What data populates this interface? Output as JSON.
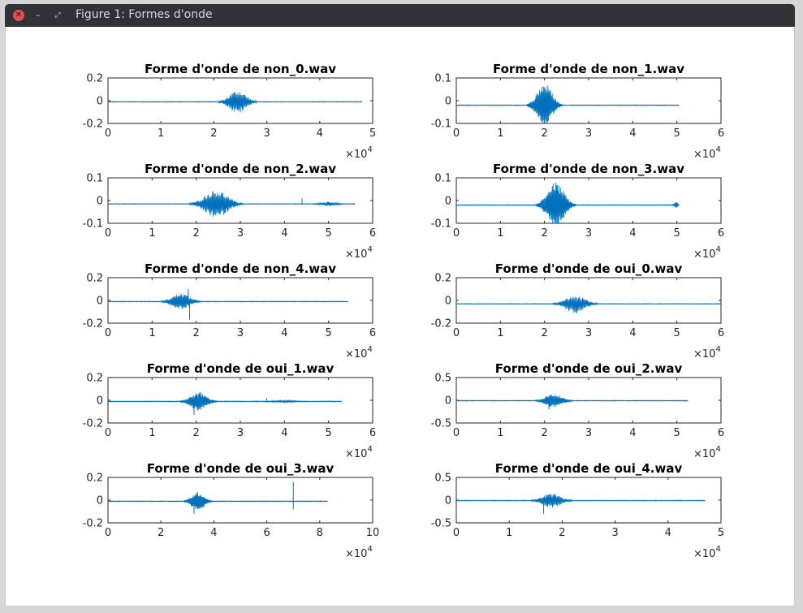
{
  "window": {
    "title": "Figure 1: Formes d'onde",
    "close_icon": "close-icon",
    "minimize_icon": "minimize-icon",
    "maximize_icon": "maximize-icon"
  },
  "colors": {
    "line": "#0072bd",
    "axes": "#262626",
    "titlebar": "#2f3338"
  },
  "chart_data": [
    {
      "type": "line",
      "title": "Forme d'onde de non_0.wav",
      "xlim": [
        0,
        5
      ],
      "ylim": [
        -0.2,
        0.2
      ],
      "xticks": [
        "0",
        "1",
        "2",
        "3",
        "4",
        "5"
      ],
      "yticks": [
        "-0.2",
        "0",
        "0.2"
      ],
      "x_exponent": "×10",
      "x_exponent_power": "4",
      "samples_x1e4": 4.8,
      "offset": -0.01,
      "bursts": [
        {
          "center": 2.45,
          "width": 0.6,
          "amplitude": 0.1
        }
      ],
      "spikes": []
    },
    {
      "type": "line",
      "title": "Forme d'onde de non_1.wav",
      "xlim": [
        0,
        6
      ],
      "ylim": [
        -0.1,
        0.1
      ],
      "xticks": [
        "0",
        "1",
        "2",
        "3",
        "4",
        "5",
        "6"
      ],
      "yticks": [
        "-0.1",
        "0",
        "0.1"
      ],
      "x_exponent": "×10",
      "x_exponent_power": "4",
      "samples_x1e4": 5.05,
      "offset": -0.02,
      "bursts": [
        {
          "center": 2.0,
          "width": 0.65,
          "amplitude": 0.1
        }
      ],
      "spikes": []
    },
    {
      "type": "line",
      "title": "Forme d'onde de non_2.wav",
      "xlim": [
        0,
        6
      ],
      "ylim": [
        -0.1,
        0.1
      ],
      "xticks": [
        "0",
        "1",
        "2",
        "3",
        "4",
        "5",
        "6"
      ],
      "yticks": [
        "-0.1",
        "0",
        "0.1"
      ],
      "x_exponent": "×10",
      "x_exponent_power": "4",
      "samples_x1e4": 5.6,
      "offset": -0.015,
      "bursts": [
        {
          "center": 2.45,
          "width": 1.0,
          "amplitude": 0.06
        },
        {
          "center": 5.0,
          "width": 0.6,
          "amplitude": 0.008
        }
      ],
      "spikes": [
        {
          "x": 4.4,
          "value": 0.01
        }
      ]
    },
    {
      "type": "line",
      "title": "Forme d'onde de non_3.wav",
      "xlim": [
        0,
        6
      ],
      "ylim": [
        -0.1,
        0.1
      ],
      "xticks": [
        "0",
        "1",
        "2",
        "3",
        "4",
        "5",
        "6"
      ],
      "yticks": [
        "-0.1",
        "0",
        "0.1"
      ],
      "x_exponent": "×10",
      "x_exponent_power": "4",
      "samples_x1e4": 5.05,
      "offset": -0.02,
      "bursts": [
        {
          "center": 2.25,
          "width": 0.75,
          "amplitude": 0.1
        },
        {
          "center": 4.98,
          "width": 0.12,
          "amplitude": 0.015
        }
      ],
      "spikes": [
        {
          "x": 4.9,
          "value": -0.015
        }
      ]
    },
    {
      "type": "line",
      "title": "Forme d'onde de non_4.wav",
      "xlim": [
        0,
        6
      ],
      "ylim": [
        -0.2,
        0.2
      ],
      "xticks": [
        "0",
        "1",
        "2",
        "3",
        "4",
        "5",
        "6"
      ],
      "yticks": [
        "-0.2",
        "0",
        "0.2"
      ],
      "x_exponent": "×10",
      "x_exponent_power": "4",
      "samples_x1e4": 5.45,
      "offset": -0.01,
      "bursts": [
        {
          "center": 1.65,
          "width": 0.75,
          "amplitude": 0.07
        }
      ],
      "spikes": [
        {
          "x": 1.85,
          "value": -0.17
        },
        {
          "x": 1.82,
          "value": 0.1
        }
      ]
    },
    {
      "type": "line",
      "title": "Forme d'onde de oui_0.wav",
      "xlim": [
        0,
        6
      ],
      "ylim": [
        -0.2,
        0.2
      ],
      "xticks": [
        "0",
        "1",
        "2",
        "3",
        "4",
        "5",
        "6"
      ],
      "yticks": [
        "-0.2",
        "0",
        "0.2"
      ],
      "x_exponent": "×10",
      "x_exponent_power": "4",
      "samples_x1e4": 6.0,
      "offset": -0.03,
      "bursts": [
        {
          "center": 2.7,
          "width": 0.85,
          "amplitude": 0.08
        }
      ],
      "spikes": []
    },
    {
      "type": "line",
      "title": "Forme d'onde de oui_1.wav",
      "xlim": [
        0,
        6
      ],
      "ylim": [
        -0.2,
        0.2
      ],
      "xticks": [
        "0",
        "1",
        "2",
        "3",
        "4",
        "5",
        "6"
      ],
      "yticks": [
        "-0.2",
        "0",
        "0.2"
      ],
      "x_exponent": "×10",
      "x_exponent_power": "4",
      "samples_x1e4": 5.3,
      "offset": -0.01,
      "bursts": [
        {
          "center": 2.05,
          "width": 0.7,
          "amplitude": 0.08
        },
        {
          "center": 4.0,
          "width": 0.8,
          "amplitude": 0.006
        }
      ],
      "spikes": [
        {
          "x": 1.95,
          "value": -0.13
        },
        {
          "x": 3.6,
          "value": 0.02
        }
      ]
    },
    {
      "type": "line",
      "title": "Forme d'onde de oui_2.wav",
      "xlim": [
        0,
        6
      ],
      "ylim": [
        -0.5,
        0.5
      ],
      "xticks": [
        "0",
        "1",
        "2",
        "3",
        "4",
        "5",
        "6"
      ],
      "yticks": [
        "-0.5",
        "0",
        "0.5"
      ],
      "x_exponent": "×10",
      "x_exponent_power": "4",
      "samples_x1e4": 5.25,
      "offset": -0.01,
      "bursts": [
        {
          "center": 2.2,
          "width": 0.7,
          "amplitude": 0.15
        }
      ],
      "spikes": [
        {
          "x": 2.1,
          "value": -0.2
        }
      ]
    },
    {
      "type": "line",
      "title": "Forme d'onde de oui_3.wav",
      "xlim": [
        0,
        10
      ],
      "ylim": [
        -0.2,
        0.2
      ],
      "xticks": [
        "0",
        "2",
        "4",
        "6",
        "8",
        "10"
      ],
      "yticks": [
        "-0.2",
        "0",
        "0.2"
      ],
      "x_exponent": "×10",
      "x_exponent_power": "4",
      "samples_x1e4": 8.3,
      "offset": -0.01,
      "bursts": [
        {
          "center": 3.4,
          "width": 0.9,
          "amplitude": 0.08
        }
      ],
      "spikes": [
        {
          "x": 3.25,
          "value": -0.12
        },
        {
          "x": 7.0,
          "value": 0.16
        },
        {
          "x": 7.0,
          "value": -0.08
        }
      ]
    },
    {
      "type": "line",
      "title": "Forme d'onde de oui_4.wav",
      "xlim": [
        0,
        5
      ],
      "ylim": [
        -0.5,
        0.5
      ],
      "xticks": [
        "0",
        "1",
        "2",
        "3",
        "4",
        "5"
      ],
      "yticks": [
        "-0.5",
        "0",
        "0.5"
      ],
      "x_exponent": "×10",
      "x_exponent_power": "4",
      "samples_x1e4": 4.7,
      "offset": -0.01,
      "bursts": [
        {
          "center": 1.8,
          "width": 0.65,
          "amplitude": 0.15
        }
      ],
      "spikes": [
        {
          "x": 1.65,
          "value": -0.3
        }
      ]
    }
  ]
}
